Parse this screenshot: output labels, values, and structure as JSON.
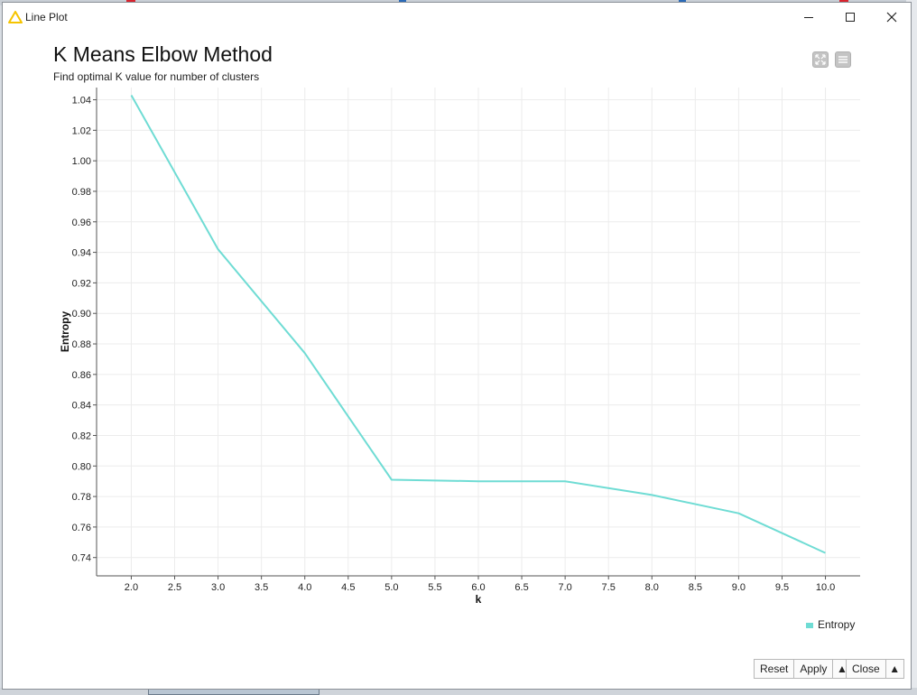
{
  "window": {
    "title": "Line Plot",
    "colors": {
      "warning_icon": "#f5c400"
    }
  },
  "header": {
    "title": "K Means Elbow Method",
    "subtitle": "Find optimal K value for number of clusters"
  },
  "toolbar": {
    "fullscreen_icon": "fullscreen-icon",
    "menu_icon": "menu-icon"
  },
  "buttons": {
    "reset": "Reset",
    "apply": "Apply",
    "apply_arrow": "▲",
    "close": "Close",
    "close_arrow": "▲"
  },
  "chart_data": {
    "type": "line",
    "xlabel": "k",
    "ylabel": "Entropy",
    "xlim": [
      1.6,
      10.4
    ],
    "ylim": [
      0.728,
      1.048
    ],
    "x_ticks": [
      2.0,
      2.5,
      3.0,
      3.5,
      4.0,
      4.5,
      5.0,
      5.5,
      6.0,
      6.5,
      7.0,
      7.5,
      8.0,
      8.5,
      9.0,
      9.5,
      10.0
    ],
    "x_tick_labels": [
      "2.0",
      "2.5",
      "3.0",
      "3.5",
      "4.0",
      "4.5",
      "5.0",
      "5.5",
      "6.0",
      "6.5",
      "7.0",
      "7.5",
      "8.0",
      "8.5",
      "9.0",
      "9.5",
      "10.0"
    ],
    "y_ticks": [
      0.74,
      0.76,
      0.78,
      0.8,
      0.82,
      0.84,
      0.86,
      0.88,
      0.9,
      0.92,
      0.94,
      0.96,
      0.98,
      1.0,
      1.02,
      1.04
    ],
    "y_tick_labels": [
      "0.74",
      "0.76",
      "0.78",
      "0.80",
      "0.82",
      "0.84",
      "0.86",
      "0.88",
      "0.90",
      "0.92",
      "0.94",
      "0.96",
      "0.98",
      "1.00",
      "1.02",
      "1.04"
    ],
    "grid": true,
    "legend_position": "bottom-right",
    "series": [
      {
        "name": "Entropy",
        "color": "#6fdcd4",
        "x": [
          2,
          3,
          4,
          5,
          6,
          7,
          8,
          9,
          10
        ],
        "y": [
          1.043,
          0.942,
          0.874,
          0.791,
          0.79,
          0.79,
          0.781,
          0.769,
          0.743
        ]
      }
    ]
  }
}
